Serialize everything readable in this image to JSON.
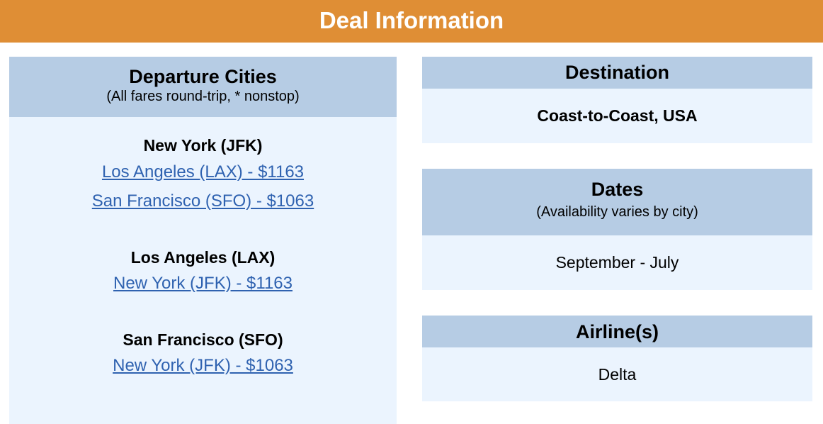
{
  "banner": {
    "title": "Deal Information"
  },
  "departure": {
    "title": "Departure Cities",
    "subtitle": "(All fares round-trip, * nonstop)",
    "groups": [
      {
        "city": "New York (JFK)",
        "links": [
          "Los Angeles (LAX) - $1163",
          "San Francisco (SFO) - $1063"
        ]
      },
      {
        "city": "Los Angeles (LAX)",
        "links": [
          "New York (JFK) - $1163"
        ]
      },
      {
        "city": "San Francisco (SFO)",
        "links": [
          "New York (JFK) - $1063"
        ]
      }
    ]
  },
  "destination": {
    "title": "Destination",
    "value": "Coast-to-Coast, USA"
  },
  "dates": {
    "title": "Dates",
    "subtitle": "(Availability varies by city)",
    "value": "September - July"
  },
  "airline": {
    "title": "Airline(s)",
    "value": "Delta"
  },
  "colors": {
    "banner": "#df8e35",
    "header": "#b6cce4",
    "body": "#ebf4fe",
    "link": "#2f62b0"
  }
}
